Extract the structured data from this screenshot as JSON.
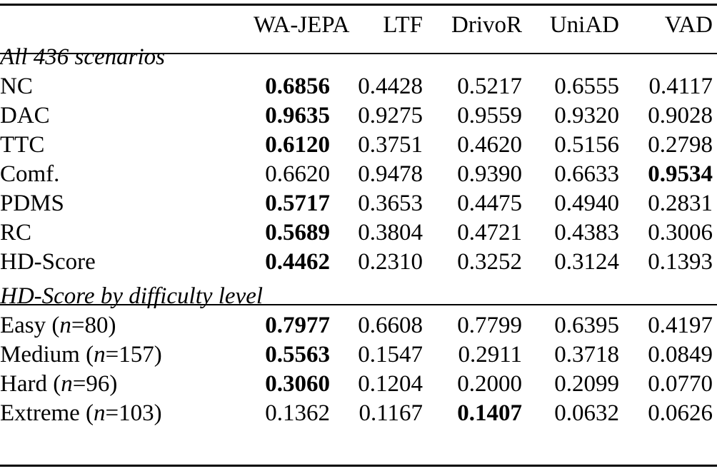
{
  "table": {
    "columns": [
      "WA-JEPA",
      "LTF",
      "DrivoR",
      "UniAD",
      "VAD"
    ],
    "sections": [
      {
        "title": "All 436 scenarios",
        "rows": [
          {
            "label": "NC",
            "values": [
              "0.6856",
              "0.4428",
              "0.5217",
              "0.6555",
              "0.4117"
            ],
            "bold": [
              0
            ]
          },
          {
            "label": "DAC",
            "values": [
              "0.9635",
              "0.9275",
              "0.9559",
              "0.9320",
              "0.9028"
            ],
            "bold": [
              0
            ]
          },
          {
            "label": "TTC",
            "values": [
              "0.6120",
              "0.3751",
              "0.4620",
              "0.5156",
              "0.2798"
            ],
            "bold": [
              0
            ]
          },
          {
            "label": "Comf.",
            "values": [
              "0.6620",
              "0.9478",
              "0.9390",
              "0.6633",
              "0.9534"
            ],
            "bold": [
              4
            ]
          },
          {
            "label": "PDMS",
            "values": [
              "0.5717",
              "0.3653",
              "0.4475",
              "0.4940",
              "0.2831"
            ],
            "bold": [
              0
            ]
          },
          {
            "label": "RC",
            "values": [
              "0.5689",
              "0.3804",
              "0.4721",
              "0.4383",
              "0.3006"
            ],
            "bold": [
              0
            ]
          },
          {
            "label": "HD-Score",
            "values": [
              "0.4462",
              "0.2310",
              "0.3252",
              "0.3124",
              "0.1393"
            ],
            "bold": [
              0
            ]
          }
        ]
      },
      {
        "title": "HD-Score by difficulty level",
        "rows": [
          {
            "label": "Easy",
            "n_var": "n",
            "n_value": "80",
            "values": [
              "0.7977",
              "0.6608",
              "0.7799",
              "0.6395",
              "0.4197"
            ],
            "bold": [
              0
            ]
          },
          {
            "label": "Medium",
            "n_var": "n",
            "n_value": "157",
            "values": [
              "0.5563",
              "0.1547",
              "0.2911",
              "0.3718",
              "0.0849"
            ],
            "bold": [
              0
            ]
          },
          {
            "label": "Hard",
            "n_var": "n",
            "n_value": "96",
            "values": [
              "0.3060",
              "0.1204",
              "0.2000",
              "0.2099",
              "0.0770"
            ],
            "bold": [
              0
            ]
          },
          {
            "label": "Extreme",
            "n_var": "n",
            "n_value": "103",
            "values": [
              "0.1362",
              "0.1167",
              "0.1407",
              "0.0632",
              "0.0626"
            ],
            "bold": [
              2
            ]
          }
        ]
      }
    ]
  }
}
